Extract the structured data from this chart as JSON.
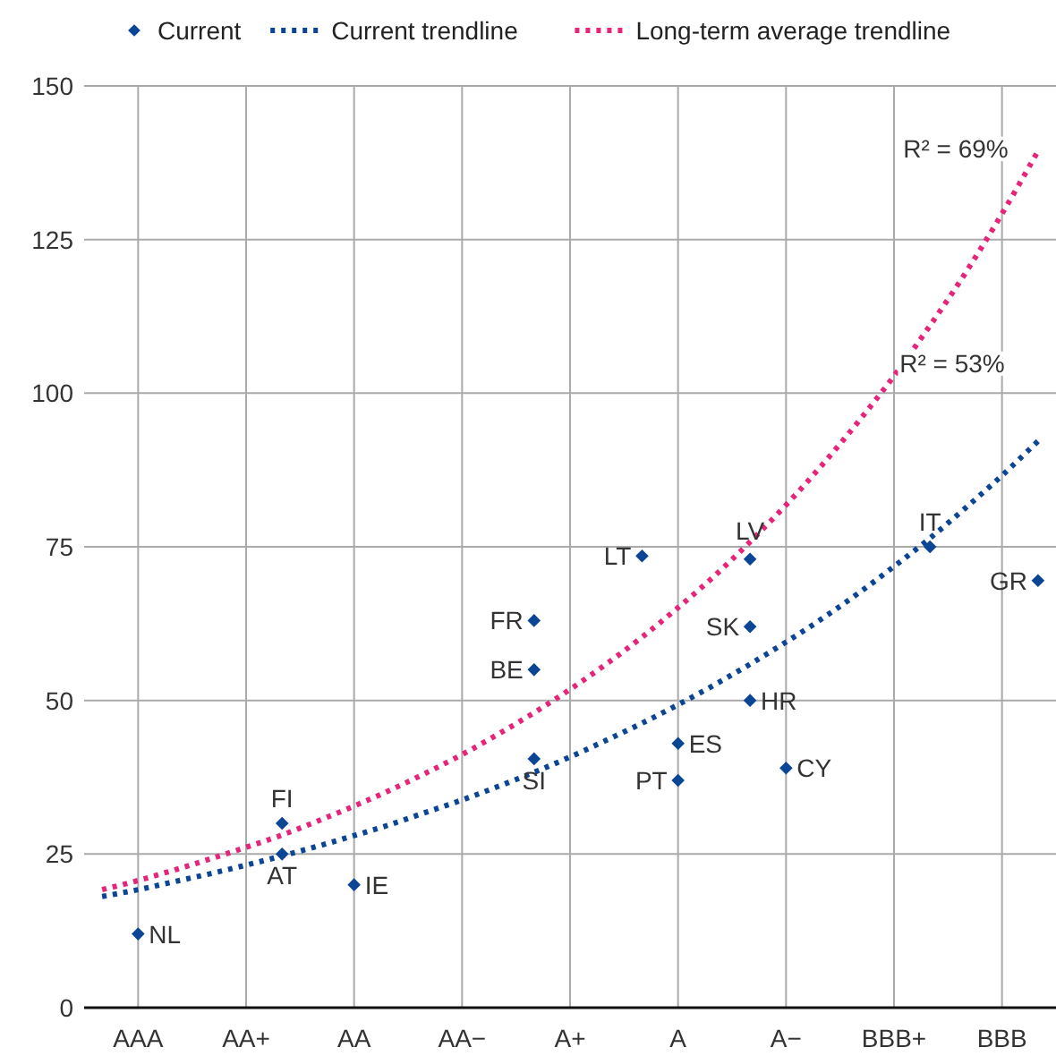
{
  "chart_data": {
    "type": "scatter",
    "categories": [
      null,
      "AAA",
      null,
      null,
      "AA+",
      null,
      null,
      "AA",
      null,
      null,
      "AA−",
      null,
      null,
      "A+",
      null,
      null,
      "A",
      null,
      null,
      "A−",
      null,
      null,
      "BBB+",
      null,
      null,
      "BBB",
      null
    ],
    "ylim": [
      0,
      150
    ],
    "yticks": [
      0,
      25,
      50,
      75,
      100,
      125,
      150
    ],
    "grid": true,
    "legend": "top",
    "series": [
      {
        "name": "Current",
        "type": "scatter",
        "marker": "diamond",
        "color": "#0b4595",
        "values": [
          null,
          12,
          null,
          null,
          null,
          25,
          null,
          20,
          null,
          null,
          null,
          null,
          63,
          null,
          null,
          73.5,
          43,
          null,
          73,
          39,
          null,
          null,
          null,
          75,
          null,
          null,
          69.5
        ],
        "value_labels": [
          null,
          "NL",
          null,
          null,
          null,
          "AT",
          null,
          "IE",
          null,
          null,
          null,
          null,
          "FR",
          null,
          null,
          "LT",
          "ES",
          null,
          "LV",
          "CY",
          null,
          null,
          null,
          "IT",
          null,
          null,
          "GR"
        ]
      },
      {
        "type": "scatter",
        "marker": "diamond",
        "color": "#0b4595",
        "values": [
          null,
          null,
          null,
          null,
          null,
          30,
          null,
          null,
          null,
          null,
          null,
          null,
          55,
          null,
          null,
          null,
          37,
          null,
          62,
          null,
          null,
          null,
          null,
          null,
          null,
          null,
          null
        ],
        "value_labels": [
          null,
          null,
          null,
          null,
          null,
          "FI",
          null,
          null,
          null,
          null,
          null,
          null,
          "BE",
          null,
          null,
          null,
          "PT",
          null,
          "SK",
          null,
          null,
          null,
          null,
          null,
          null,
          null,
          null
        ]
      },
      {
        "type": "scatter",
        "marker": "diamond",
        "color": "#0b4595",
        "values": [
          null,
          null,
          null,
          null,
          null,
          null,
          null,
          null,
          null,
          null,
          null,
          null,
          40.5,
          null,
          null,
          null,
          null,
          null,
          50,
          null,
          null,
          null,
          null,
          null,
          null,
          null,
          null
        ],
        "value_labels": [
          null,
          null,
          null,
          null,
          null,
          null,
          null,
          null,
          null,
          null,
          null,
          null,
          "SI",
          null,
          null,
          null,
          null,
          null,
          "HR",
          null,
          null,
          null,
          null,
          null,
          null,
          null,
          null
        ]
      },
      {
        "name": "Current trendline",
        "type": "line",
        "line_style": "dotted",
        "marker": "none",
        "color": "#0b4595",
        "values": [
          18.1,
          19.2,
          20.5,
          21.8,
          23.2,
          24.7,
          26.3,
          28,
          29.8,
          31.8,
          33.8,
          36,
          38.3,
          40.8,
          43.5,
          46.3,
          49.3,
          52.5,
          55.9,
          59.5,
          63.3,
          67.4,
          71.8,
          76.4,
          81.4,
          86.6,
          92.2
        ]
      },
      {
        "name": "Long-term average trendline",
        "type": "line",
        "line_style": "dotted",
        "marker": "none",
        "color": "#e5257a",
        "values": [
          19.2,
          20.7,
          22.4,
          24.2,
          26.1,
          28.1,
          30.4,
          32.8,
          35.4,
          38.2,
          41.2,
          44.5,
          48,
          51.8,
          55.9,
          60.3,
          65.1,
          70.2,
          75.8,
          81.8,
          88.3,
          95.3,
          102.8,
          111,
          119.7,
          129.2,
          139.4
        ]
      }
    ],
    "annotations": [
      "R² = 69%",
      "R² = 53%"
    ]
  }
}
